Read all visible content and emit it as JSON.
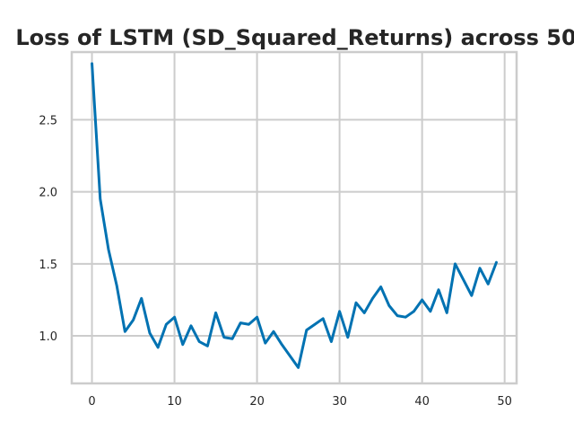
{
  "chart_data": {
    "type": "line",
    "title": "Loss of LSTM (SD_Squared_Returns) across 50",
    "xlabel": "",
    "ylabel": "",
    "xlim": [
      -2.45,
      51.45
    ],
    "ylim": [
      0.67,
      2.97
    ],
    "x_ticks": [
      0,
      10,
      20,
      30,
      40,
      50
    ],
    "x_tick_labels": [
      "0",
      "10",
      "20",
      "30",
      "40",
      "50"
    ],
    "y_ticks": [
      1.0,
      1.5,
      2.0,
      2.5
    ],
    "y_tick_labels": [
      "1.0",
      "1.5",
      "2.0",
      "2.5"
    ],
    "grid": true,
    "legend": "none",
    "series": [
      {
        "color": "#0072b2",
        "x": [
          0,
          1,
          2,
          3,
          4,
          5,
          6,
          7,
          8,
          9,
          10,
          11,
          12,
          13,
          14,
          15,
          16,
          17,
          18,
          19,
          20,
          21,
          22,
          23,
          24,
          25,
          26,
          27,
          28,
          29,
          30,
          31,
          32,
          33,
          34,
          35,
          36,
          37,
          38,
          39,
          40,
          41,
          42,
          43,
          44,
          45,
          46,
          47,
          48,
          49
        ],
        "values": [
          2.89,
          1.95,
          1.6,
          1.35,
          1.03,
          1.11,
          1.26,
          1.02,
          0.92,
          1.08,
          1.13,
          0.94,
          1.07,
          0.96,
          0.93,
          1.16,
          0.99,
          0.98,
          1.09,
          1.08,
          1.13,
          0.95,
          1.03,
          0.94,
          0.86,
          0.78,
          1.04,
          1.08,
          1.12,
          0.96,
          1.17,
          0.99,
          1.23,
          1.16,
          1.26,
          1.34,
          1.21,
          1.14,
          1.13,
          1.17,
          1.25,
          1.17,
          1.32,
          1.16,
          1.5,
          1.39,
          1.28,
          1.47,
          1.36,
          1.51
        ]
      }
    ]
  }
}
